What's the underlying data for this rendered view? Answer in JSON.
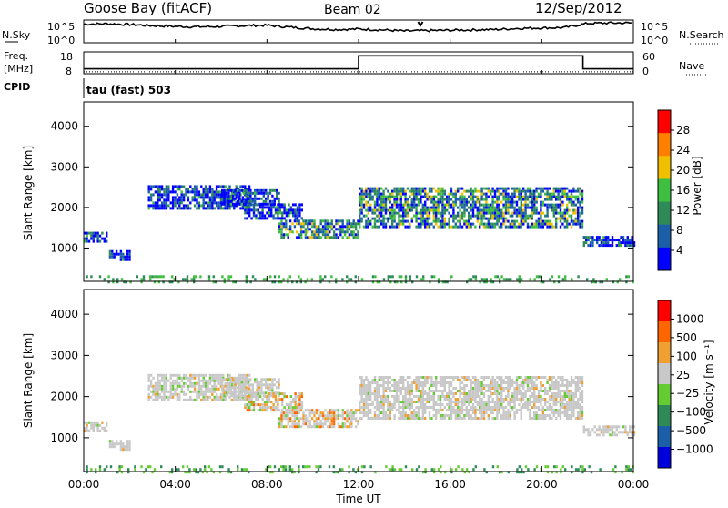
{
  "header": {
    "title": "Goose Bay (fitACF)",
    "beam": "Beam 02",
    "date": "12/Sep/2012"
  },
  "noise_panel": {
    "left_label": "N.Sky",
    "right_label": "N.Search",
    "y_tick_top": "10^5",
    "y_tick_bottom": "10^0"
  },
  "freq_panel": {
    "left_label_line1": "Freq.",
    "left_label_line2": "[MHz]",
    "left_ticks": [
      "18",
      "8"
    ],
    "right_label": "Nave",
    "right_ticks": [
      "60",
      "0"
    ]
  },
  "cpid": {
    "label": "CPID",
    "mode": "tau (fast) 503"
  },
  "chart_data": [
    {
      "type": "line",
      "name_ref": "noise",
      "x_unit": "hours UT",
      "xlim": [
        0,
        24
      ],
      "series": [
        {
          "points": [
            [
              0,
              4.4
            ],
            [
              1,
              4.5
            ],
            [
              2,
              4.3
            ],
            [
              3,
              4.0
            ],
            [
              4,
              3.8
            ],
            [
              5,
              3.7
            ],
            [
              6,
              3.8
            ],
            [
              7,
              4.0
            ],
            [
              8,
              4.1
            ],
            [
              9,
              3.6
            ],
            [
              10,
              3.2
            ],
            [
              11,
              3.0
            ],
            [
              12,
              3.1
            ],
            [
              13,
              2.9
            ],
            [
              14,
              2.6
            ],
            [
              15,
              2.7
            ],
            [
              16,
              2.8
            ],
            [
              17,
              2.9
            ],
            [
              18,
              3.0
            ],
            [
              19,
              3.3
            ],
            [
              20,
              3.4
            ],
            [
              21,
              3.5
            ],
            [
              22,
              4.6
            ],
            [
              23,
              4.7
            ],
            [
              24,
              4.7
            ]
          ]
        },
        {
          "points": [
            [
              14.6,
              5.0
            ],
            [
              14.7,
              4.0
            ],
            [
              14.8,
              5.0
            ]
          ]
        }
      ]
    },
    {
      "type": "line",
      "name_ref": "frequency",
      "xlim": [
        0,
        24
      ],
      "series": [
        {
          "points": [
            [
              0,
              0.2
            ],
            [
              12,
              0.2
            ],
            [
              12,
              0.85
            ],
            [
              21.8,
              0.85
            ],
            [
              21.8,
              0.2
            ],
            [
              24,
              0.2
            ]
          ]
        },
        {
          "points": [
            [
              0,
              0.05
            ],
            [
              24,
              0.05
            ]
          ]
        }
      ]
    },
    {
      "type": "heatmap",
      "name_ref": "power",
      "ylabel": "Slant Range [km]",
      "colorbar_label": "Power [dB]",
      "colorbar_ticks": [
        "28",
        "24",
        "20",
        "16",
        "12",
        "8",
        "4"
      ],
      "ylim": [
        180,
        4600
      ],
      "y_ticks": [
        1000,
        2000,
        3000,
        4000
      ],
      "x_ticks": [
        "00:00",
        "04:00",
        "08:00",
        "12:00",
        "16:00",
        "20:00",
        "00:00"
      ],
      "colors": [
        "#0000ff",
        "#1a5fa8",
        "#2e8b57",
        "#3fbf3f",
        "#f0c000",
        "#ff7f00",
        "#ff0000"
      ]
    },
    {
      "type": "heatmap",
      "name_ref": "velocity",
      "ylabel": "Slant Range [km]",
      "xlabel": "Time UT",
      "colorbar_label": "Velocity [m s⁻¹]",
      "colorbar_ticks": [
        "1000",
        "500",
        "100",
        "25",
        "−25",
        "−100",
        "−500",
        "−1000"
      ],
      "ylim": [
        180,
        4600
      ],
      "y_ticks": [
        1000,
        2000,
        3000,
        4000
      ],
      "x_ticks": [
        "00:00",
        "04:00",
        "08:00",
        "12:00",
        "16:00",
        "20:00",
        "00:00"
      ],
      "colors": [
        "#0000dd",
        "#1a5fa8",
        "#2e8b57",
        "#66cc33",
        "#c8c8c8",
        "#f0a030",
        "#ff6600",
        "#ff0000"
      ]
    }
  ]
}
